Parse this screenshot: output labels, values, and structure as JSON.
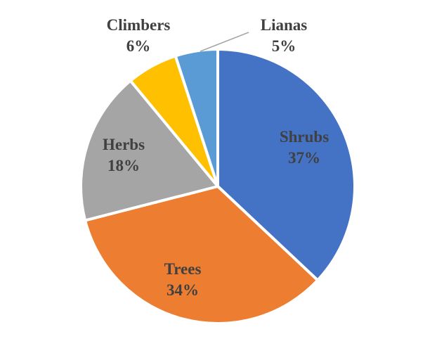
{
  "chart_data": {
    "type": "pie",
    "slices": [
      {
        "label": "Shrubs",
        "value": 37,
        "value_label": "37%",
        "color": "#4472C4",
        "text_color": "#404040"
      },
      {
        "label": "Trees",
        "value": 34,
        "value_label": "34%",
        "color": "#ED7D31",
        "text_color": "#404040"
      },
      {
        "label": "Herbs",
        "value": 18,
        "value_label": "18%",
        "color": "#A5A5A5",
        "text_color": "#404040"
      },
      {
        "label": "Climbers",
        "value": 6,
        "value_label": "6%",
        "color": "#FFC000",
        "text_color": "#404040"
      },
      {
        "label": "Lianas",
        "value": 5,
        "value_label": "5%",
        "color": "#5B9BD5",
        "text_color": "#404040"
      }
    ],
    "start": "12 o'clock",
    "direction": "clockwise",
    "legend": "none",
    "slice_border_color": "#FFFFFF"
  }
}
